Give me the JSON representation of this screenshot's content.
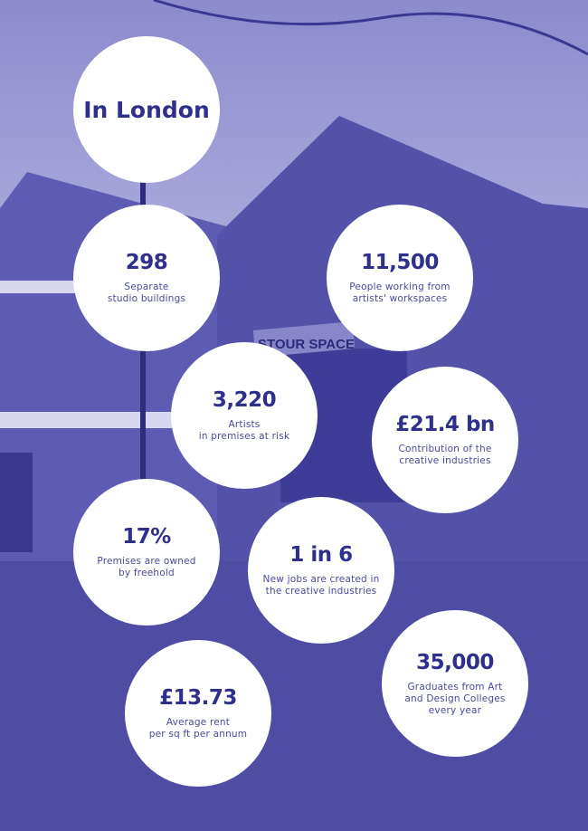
{
  "colors": {
    "background": "#5b58b0",
    "circle": "#ffffff",
    "text": "#2f2f8c"
  },
  "background_sign": "STOUR SPACE",
  "title": "In London",
  "stats": [
    {
      "value": "298",
      "desc1": "Separate",
      "desc2": "studio buildings"
    },
    {
      "value": "11,500",
      "desc1": "People working from",
      "desc2": "artists' workspaces"
    },
    {
      "value": "3,220",
      "desc1": "Artists",
      "desc2": "in premises at risk"
    },
    {
      "value": "£21.4 bn",
      "desc1": "Contribution of the",
      "desc2": "creative industries"
    },
    {
      "value": "17%",
      "desc1": "Premises are owned",
      "desc2": "by freehold"
    },
    {
      "value": "1 in 6",
      "desc1": "New jobs are created in",
      "desc2": "the creative industries"
    },
    {
      "value": "£13.73",
      "desc1": "Average rent",
      "desc2": "per sq ft per annum"
    },
    {
      "value": "35,000",
      "desc1": "Graduates from Art",
      "desc2": "and Design Colleges",
      "desc3": "every year"
    }
  ]
}
